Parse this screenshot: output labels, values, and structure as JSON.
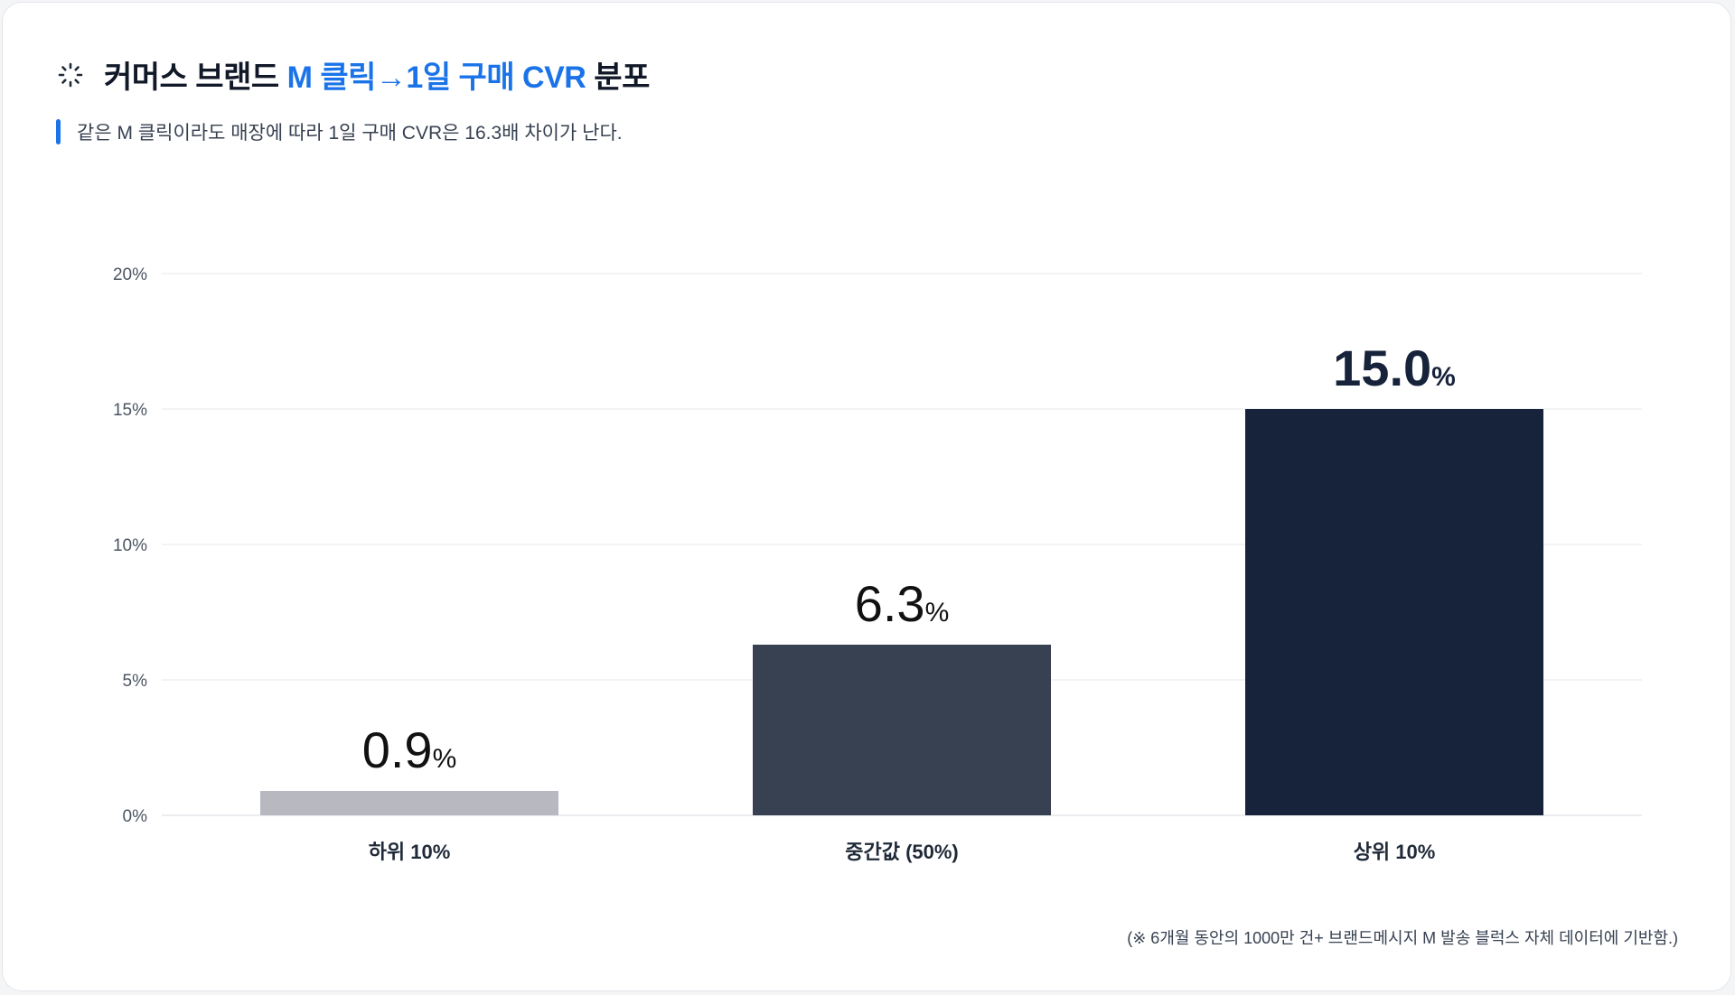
{
  "header": {
    "title_prefix": "커머스 브랜드 ",
    "title_highlight": "M 클릭→1일 구매 CVR",
    "title_suffix": " 분포",
    "icon": "loading-spinner-icon"
  },
  "subtitle": {
    "text": "같은 M 클릭이라도 매장에 따라 1일 구매 CVR은 16.3배 차이가 난다."
  },
  "colors": {
    "accent": "#1a73e8",
    "grid": "#e5e7eb",
    "axis_text": "#4b5563"
  },
  "chart_data": {
    "type": "bar",
    "categories": [
      "하위 10%",
      "중간값 (50%)",
      "상위 10%"
    ],
    "values": [
      0.9,
      6.3,
      15.0
    ],
    "value_labels": [
      "0.9",
      "6.3",
      "15.0"
    ],
    "value_unit": "%",
    "bar_colors": [
      "#b8b8c0",
      "#374151",
      "#17233a"
    ],
    "value_label_colors": [
      "#111111",
      "#111111",
      "#17233a"
    ],
    "y_ticks": [
      0,
      5,
      10,
      15,
      20
    ],
    "y_tick_labels": [
      "0%",
      "5%",
      "10%",
      "15%",
      "20%"
    ],
    "ylim": [
      0,
      20
    ],
    "grid": true
  },
  "footnote": {
    "text": "(※ 6개월 동안의 1000만 건+ 브랜드메시지 M 발송 블럭스 자체 데이터에 기반함.)"
  }
}
